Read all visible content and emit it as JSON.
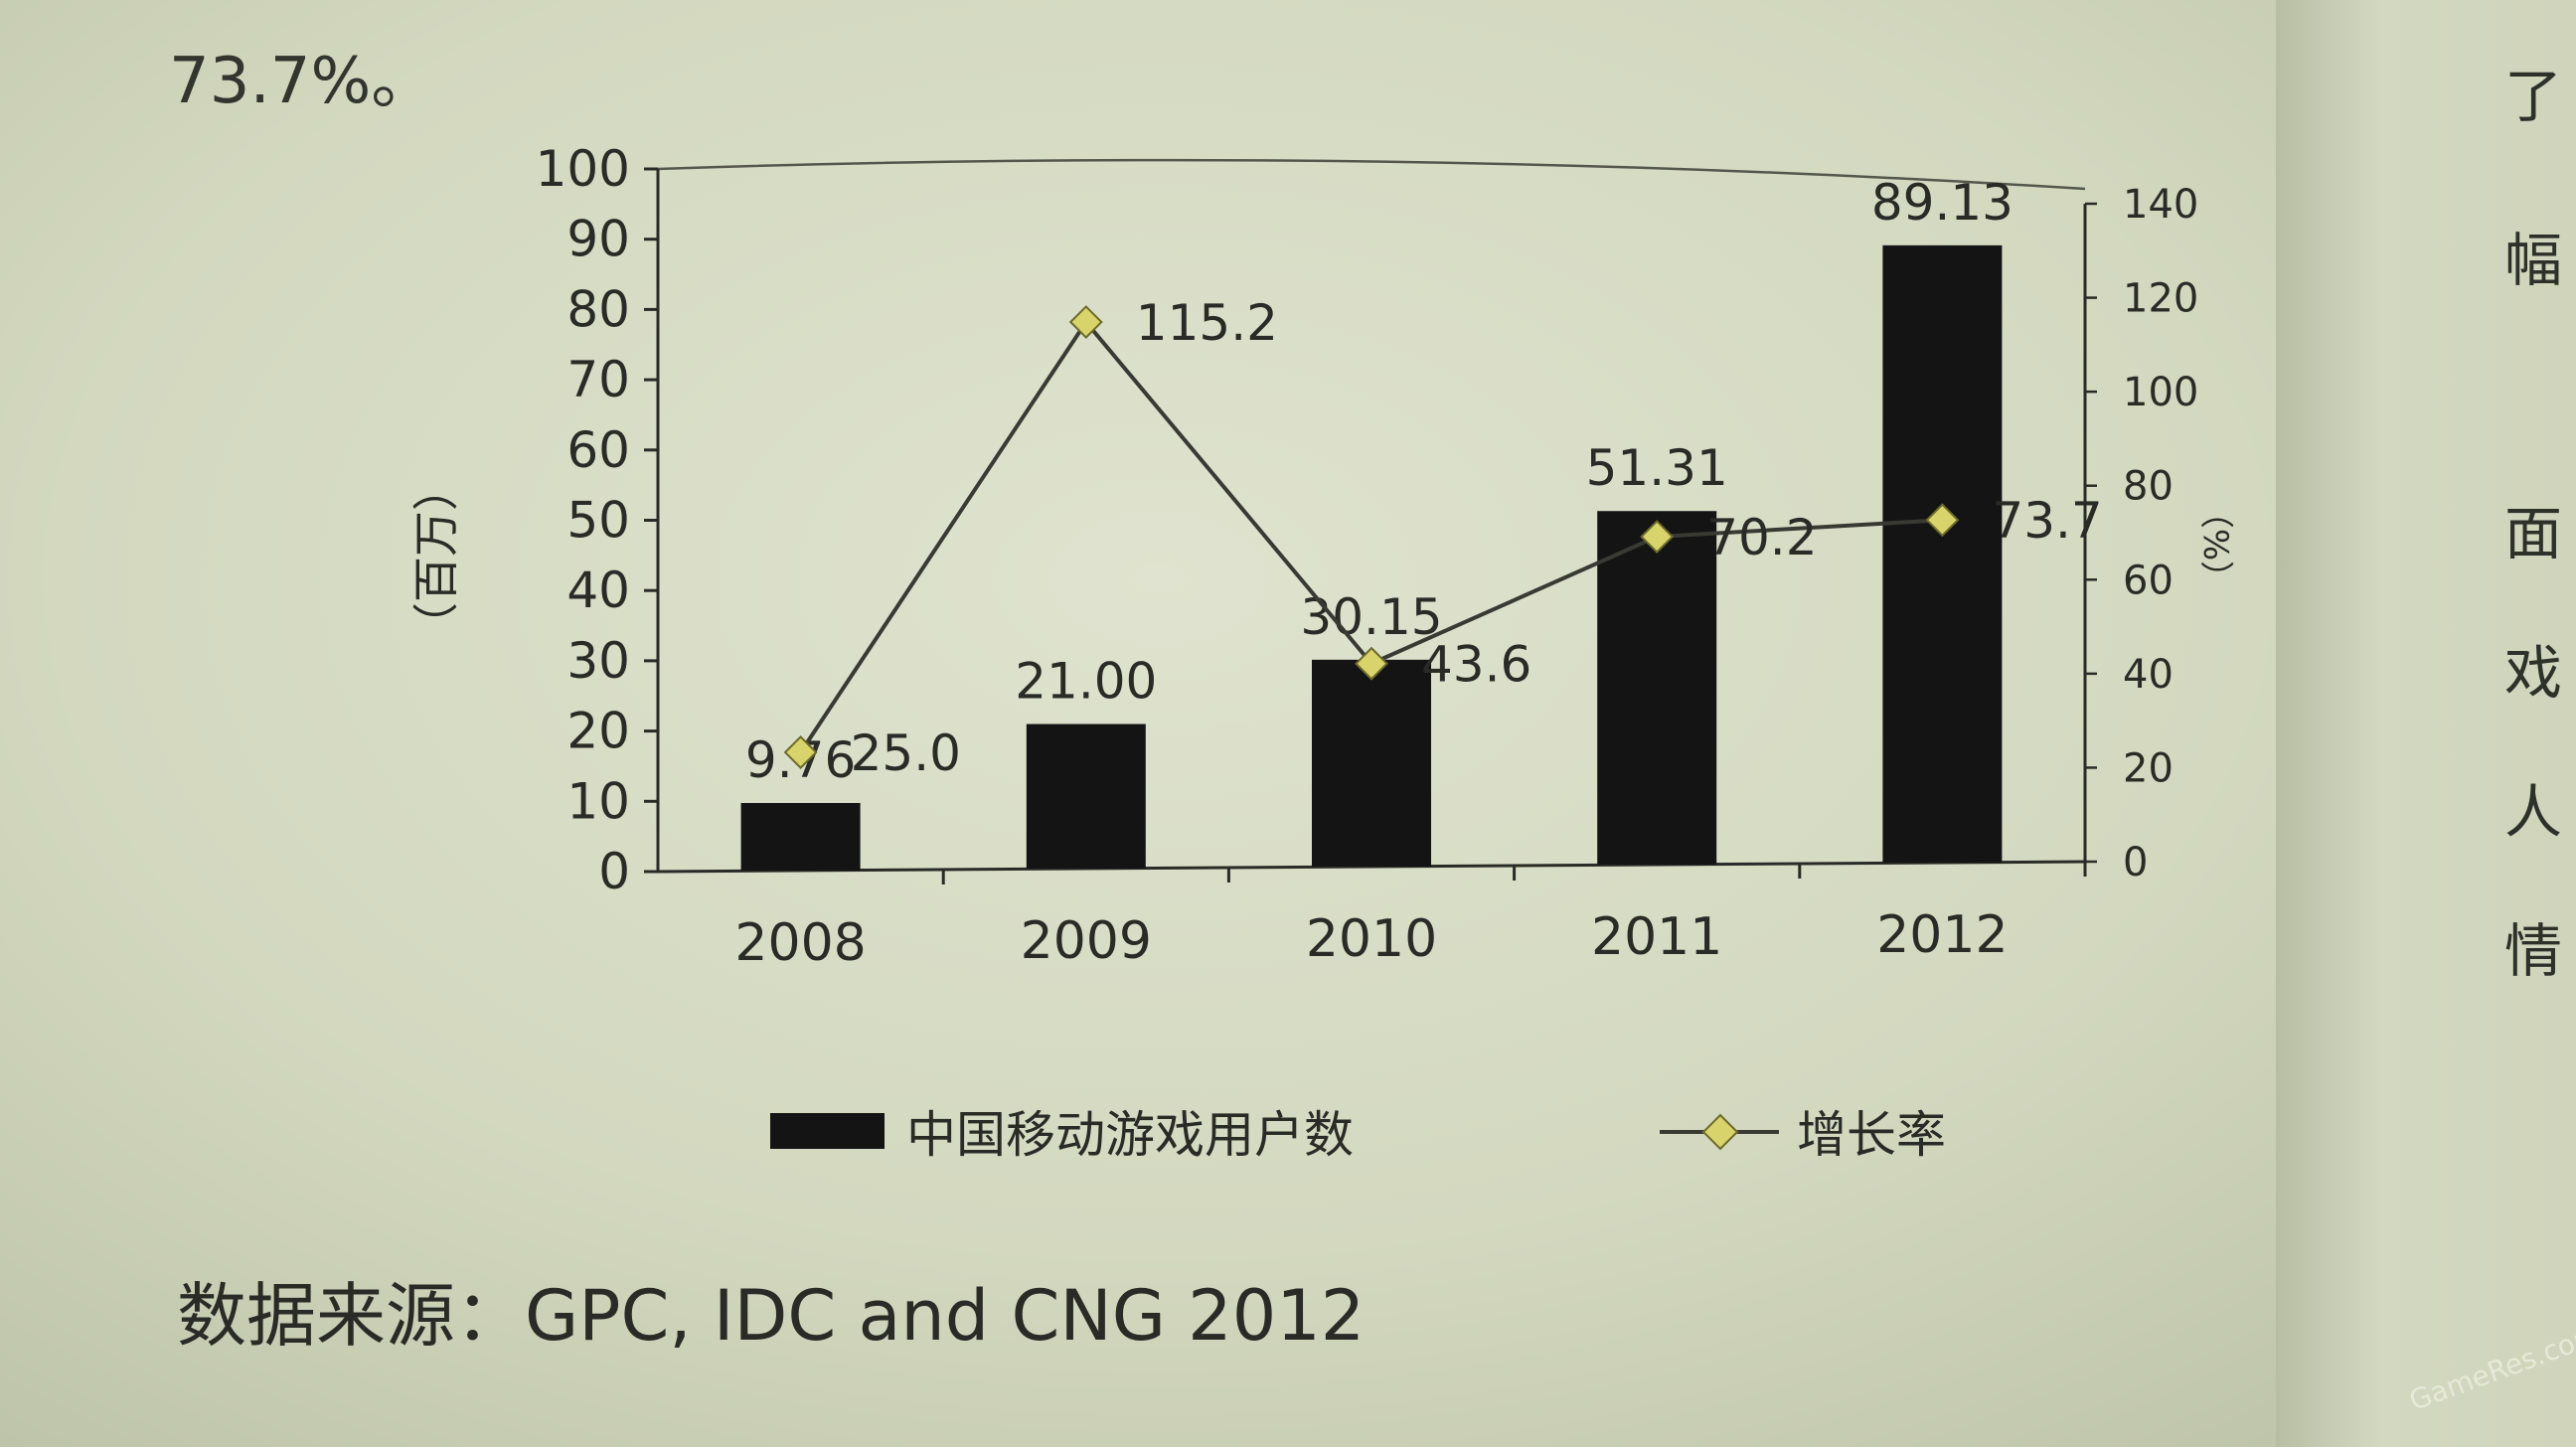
{
  "intro_text": "73.7%。",
  "side_chars": [
    "了",
    "幅",
    "面",
    "戏",
    "人",
    "情"
  ],
  "source": "数据来源：GPC, IDC and CNG 2012",
  "watermark": "GameRes.com",
  "chart_data": {
    "type": "bar",
    "categories": [
      "2008",
      "2009",
      "2010",
      "2011",
      "2012"
    ],
    "series": [
      {
        "name": "中国移动游戏用户数",
        "type": "bar",
        "axis": "left",
        "values": [
          9.76,
          21.0,
          30.15,
          51.31,
          89.13
        ],
        "labels": [
          "9.76",
          "21.00",
          "30.15",
          "51.31",
          "89.13"
        ],
        "color": "#141414"
      },
      {
        "name": "增长率",
        "type": "line",
        "axis": "right",
        "values": [
          25.0,
          115.2,
          43.6,
          70.2,
          73.7
        ],
        "labels": [
          "25.0",
          "115.2",
          "43.6",
          "70.2",
          "73.7"
        ],
        "color": "#3a3a34",
        "marker_color": "#d8d36a"
      }
    ],
    "y_left": {
      "label": "（百万）",
      "ylim": [
        0,
        100
      ],
      "ticks": [
        "0",
        "10",
        "20",
        "30",
        "40",
        "50",
        "60",
        "70",
        "80",
        "90",
        "100"
      ]
    },
    "y_right": {
      "label": "（%）",
      "ylim": [
        0,
        140
      ],
      "ticks": [
        "0",
        "20",
        "40",
        "60",
        "80",
        "100",
        "120",
        "140"
      ]
    },
    "legend_position": "bottom",
    "grid": false
  }
}
